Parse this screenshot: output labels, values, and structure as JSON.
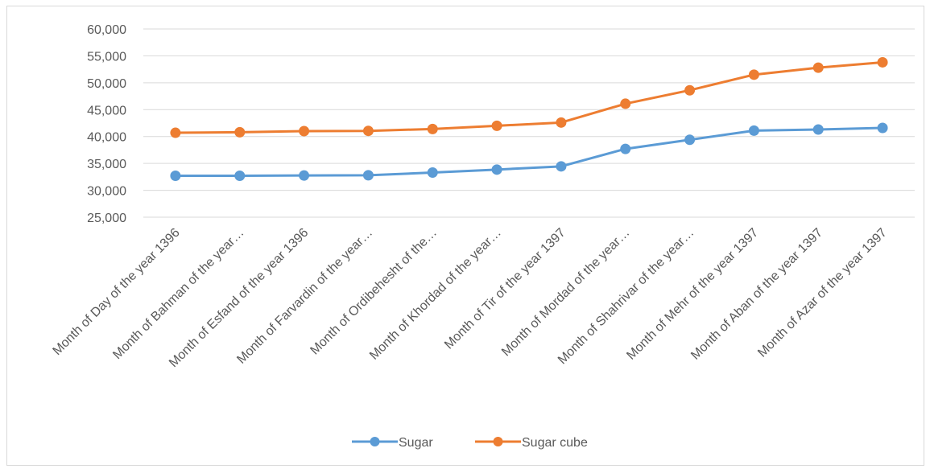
{
  "chart_data": {
    "type": "line",
    "title": "",
    "xlabel": "",
    "ylabel": "",
    "ylim": [
      25000,
      60000
    ],
    "yticks": [
      25000,
      30000,
      35000,
      40000,
      45000,
      50000,
      55000,
      60000
    ],
    "ytick_labels": [
      "25,000",
      "30,000",
      "35,000",
      "40,000",
      "45,000",
      "50,000",
      "55,000",
      "60,000"
    ],
    "grid": "horizontal",
    "legend_position": "bottom",
    "categories": [
      "Month of Day of  the year 1396",
      "Month of Bahman of  the year…",
      "Month of Esfand of  the year 1396",
      "Month of Farvardin of  the year…",
      "Month of Ordibehesht of  the…",
      "Month of Khordad of  the year…",
      "Month of Tir of  the year 1397",
      "Month of Mordad of  the year…",
      "Month of Shahrivar of  the year…",
      "Month of Mehr of  the year 1397",
      "Month of Aban of  the year 1397",
      "Month of Azar of  the year 1397"
    ],
    "series": [
      {
        "name": "Sugar",
        "color": "#5b9bd5",
        "values": [
          32700,
          32700,
          32750,
          32800,
          33300,
          33850,
          34450,
          37700,
          39400,
          41100,
          41300,
          41600
        ]
      },
      {
        "name": "Sugar cube",
        "color": "#ed7d31",
        "values": [
          40700,
          40800,
          41000,
          41050,
          41400,
          42000,
          42600,
          46100,
          48600,
          51500,
          52800,
          53800
        ]
      }
    ]
  }
}
